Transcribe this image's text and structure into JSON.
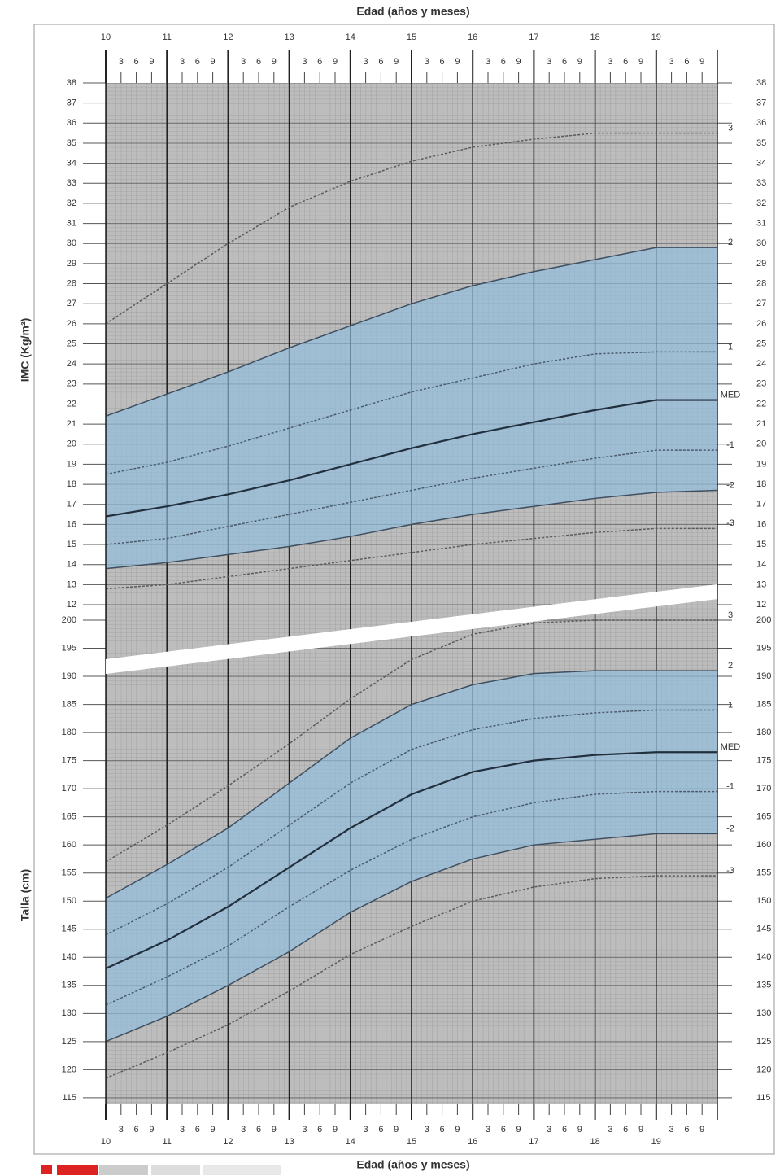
{
  "chart_data": [
    {
      "type": "line",
      "x_label": "Edad (años y meses)",
      "y_label": "IMC (Kg/m²)",
      "xlim": [
        10,
        20
      ],
      "xticks": [
        10,
        {
          "value": 10.25,
          "label": "3"
        },
        {
          "value": 10.5,
          "label": "6"
        },
        {
          "value": 10.75,
          "label": "9"
        },
        11,
        {
          "value": 11.25,
          "label": "3"
        },
        {
          "value": 11.5,
          "label": "6"
        },
        {
          "value": 11.75,
          "label": "9"
        },
        12,
        {
          "value": 12.25,
          "label": "3"
        },
        {
          "value": 12.5,
          "label": "6"
        },
        {
          "value": 12.75,
          "label": "9"
        },
        13,
        {
          "value": 13.25,
          "label": "3"
        },
        {
          "value": 13.5,
          "label": "6"
        },
        {
          "value": 13.75,
          "label": "9"
        },
        14,
        {
          "value": 14.25,
          "label": "3"
        },
        {
          "value": 14.5,
          "label": "6"
        },
        {
          "value": 14.75,
          "label": "9"
        },
        15,
        {
          "value": 15.25,
          "label": "3"
        },
        {
          "value": 15.5,
          "label": "6"
        },
        {
          "value": 15.75,
          "label": "9"
        },
        16,
        {
          "value": 16.25,
          "label": "3"
        },
        {
          "value": 16.5,
          "label": "6"
        },
        {
          "value": 16.75,
          "label": "9"
        },
        17,
        {
          "value": 17.25,
          "label": "3"
        },
        {
          "value": 17.5,
          "label": "6"
        },
        {
          "value": 17.75,
          "label": "9"
        },
        18,
        {
          "value": 18.25,
          "label": "3"
        },
        {
          "value": 18.5,
          "label": "6"
        },
        {
          "value": 18.75,
          "label": "9"
        },
        19,
        {
          "value": 19.25,
          "label": "3"
        },
        {
          "value": 19.5,
          "label": "6"
        },
        {
          "value": 19.75,
          "label": "9"
        }
      ],
      "ylim": [
        10.5,
        38
      ],
      "yticks": [
        12,
        13,
        14,
        15,
        16,
        17,
        18,
        19,
        20,
        21,
        22,
        23,
        24,
        25,
        26,
        27,
        28,
        29,
        30,
        31,
        32,
        33,
        34,
        35,
        36,
        37,
        38
      ],
      "grid": true,
      "band_color": "#8fbfe0",
      "x": [
        10,
        11,
        12,
        13,
        14,
        15,
        16,
        17,
        18,
        19,
        20
      ],
      "series": [
        {
          "name": "3",
          "color": "#5a5a5a",
          "style": "dashed",
          "values": [
            26,
            28,
            30,
            31.8,
            33.1,
            34.1,
            34.8,
            35.2,
            35.5,
            35.5,
            35.5
          ]
        },
        {
          "name": "2",
          "color": "#3f4f60",
          "style": "solid",
          "values": [
            21.4,
            22.5,
            23.6,
            24.8,
            25.9,
            27,
            27.9,
            28.6,
            29.2,
            29.8,
            29.8
          ]
        },
        {
          "name": "1",
          "color": "#4a5a6a",
          "style": "dashed",
          "values": [
            18.5,
            19.1,
            19.9,
            20.8,
            21.7,
            22.6,
            23.3,
            24,
            24.5,
            24.6,
            24.6
          ]
        },
        {
          "name": "MED",
          "color": "#22303e",
          "style": "solid",
          "values": [
            16.4,
            16.9,
            17.5,
            18.2,
            19,
            19.8,
            20.5,
            21.1,
            21.7,
            22.2,
            22.2
          ]
        },
        {
          "name": "-1",
          "color": "#4a5a6a",
          "style": "dashed",
          "values": [
            15,
            15.3,
            15.9,
            16.5,
            17.1,
            17.7,
            18.3,
            18.8,
            19.3,
            19.7,
            19.7
          ]
        },
        {
          "name": "-2",
          "color": "#3f4f60",
          "style": "solid",
          "values": [
            13.8,
            14.1,
            14.5,
            14.9,
            15.4,
            16,
            16.5,
            16.9,
            17.3,
            17.6,
            17.7
          ]
        },
        {
          "name": "-3",
          "color": "#5a5a5a",
          "style": "dashed",
          "values": [
            12.8,
            13,
            13.4,
            13.8,
            14.2,
            14.6,
            15,
            15.3,
            15.6,
            15.8,
            15.8
          ]
        }
      ]
    },
    {
      "type": "line",
      "x_label": "Edad (años y meses)",
      "y_label": "Talla (cm)",
      "xlim": [
        10,
        20
      ],
      "xticks": [
        10,
        {
          "value": 10.25,
          "label": "3"
        },
        {
          "value": 10.5,
          "label": "6"
        },
        {
          "value": 10.75,
          "label": "9"
        },
        11,
        {
          "value": 11.25,
          "label": "3"
        },
        {
          "value": 11.5,
          "label": "6"
        },
        {
          "value": 11.75,
          "label": "9"
        },
        12,
        {
          "value": 12.25,
          "label": "3"
        },
        {
          "value": 12.5,
          "label": "6"
        },
        {
          "value": 12.75,
          "label": "9"
        },
        13,
        {
          "value": 13.25,
          "label": "3"
        },
        {
          "value": 13.5,
          "label": "6"
        },
        {
          "value": 13.75,
          "label": "9"
        },
        14,
        {
          "value": 14.25,
          "label": "3"
        },
        {
          "value": 14.5,
          "label": "6"
        },
        {
          "value": 14.75,
          "label": "9"
        },
        15,
        {
          "value": 15.25,
          "label": "3"
        },
        {
          "value": 15.5,
          "label": "6"
        },
        {
          "value": 15.75,
          "label": "9"
        },
        16,
        {
          "value": 16.25,
          "label": "3"
        },
        {
          "value": 16.5,
          "label": "6"
        },
        {
          "value": 16.75,
          "label": "9"
        },
        17,
        {
          "value": 17.25,
          "label": "3"
        },
        {
          "value": 17.5,
          "label": "6"
        },
        {
          "value": 17.75,
          "label": "9"
        },
        18,
        {
          "value": 18.25,
          "label": "3"
        },
        {
          "value": 18.5,
          "label": "6"
        },
        {
          "value": 18.75,
          "label": "9"
        },
        19,
        {
          "value": 19.25,
          "label": "3"
        },
        {
          "value": 19.5,
          "label": "6"
        },
        {
          "value": 19.75,
          "label": "9"
        }
      ],
      "ylim": [
        113,
        200
      ],
      "yticks": [
        115,
        120,
        125,
        130,
        135,
        140,
        145,
        150,
        155,
        160,
        165,
        170,
        175,
        180,
        185,
        190,
        195,
        200
      ],
      "grid": true,
      "band_color": "#8fbfe0",
      "x": [
        10,
        11,
        12,
        13,
        14,
        15,
        16,
        17,
        18,
        19,
        20
      ],
      "series": [
        {
          "name": "3",
          "color": "#5a5a5a",
          "style": "dashed",
          "values": [
            157,
            163.5,
            170.5,
            178,
            186,
            193,
            197.5,
            199.5,
            200,
            200,
            200
          ]
        },
        {
          "name": "2",
          "color": "#3f4f60",
          "style": "solid",
          "values": [
            150.5,
            156.5,
            163,
            171,
            179,
            185,
            188.5,
            190.5,
            191,
            191,
            191
          ]
        },
        {
          "name": "1",
          "color": "#4a5a6a",
          "style": "dashed",
          "values": [
            144,
            149.5,
            156,
            163.5,
            171,
            177,
            180.5,
            182.5,
            183.5,
            184,
            184
          ]
        },
        {
          "name": "MED",
          "color": "#22303e",
          "style": "solid",
          "values": [
            138,
            143,
            149,
            156,
            163,
            169,
            173,
            175,
            176,
            176.5,
            176.5
          ]
        },
        {
          "name": "-1",
          "color": "#4a5a6a",
          "style": "dashed",
          "values": [
            131.5,
            136.5,
            142,
            149,
            155.5,
            161,
            165,
            167.5,
            169,
            169.5,
            169.5
          ]
        },
        {
          "name": "-2",
          "color": "#3f4f60",
          "style": "solid",
          "values": [
            125,
            129.5,
            135,
            141,
            148,
            153.5,
            157.5,
            160,
            161,
            162,
            162
          ]
        },
        {
          "name": "-3",
          "color": "#5a5a5a",
          "style": "dashed",
          "values": [
            118.5,
            123,
            128,
            134,
            140.5,
            145.5,
            150,
            152.5,
            154,
            154.5,
            154.5
          ]
        }
      ]
    }
  ]
}
